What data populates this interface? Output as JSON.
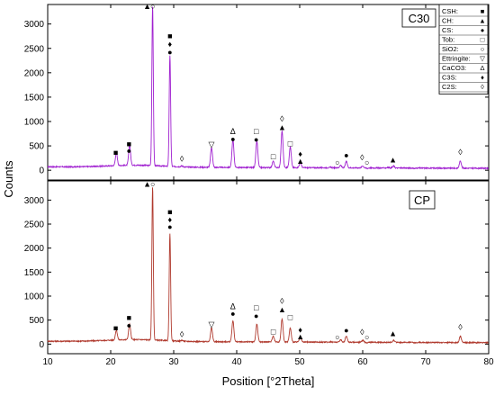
{
  "chart_data": {
    "type": "line",
    "xlabel": "Position [°2Theta]",
    "ylabel": "Counts",
    "xlim": [
      10,
      80
    ],
    "x_ticks": [
      10,
      20,
      30,
      40,
      50,
      60,
      70,
      80
    ],
    "ylim": [
      -200,
      3400
    ],
    "y_ticks": [
      0,
      500,
      1000,
      1500,
      2000,
      2500,
      3000
    ],
    "grid": false,
    "legend_placement": "top-right",
    "legend": [
      {
        "label": "CSH:",
        "symbol": "■"
      },
      {
        "label": "CH:",
        "symbol": "▲"
      },
      {
        "label": "CS:",
        "symbol": "●"
      },
      {
        "label": "Tob:",
        "symbol": "□"
      },
      {
        "label": "SiO2:",
        "symbol": "○"
      },
      {
        "label": "Ettringite:",
        "symbol": "▽"
      },
      {
        "label": "CaCO3:",
        "symbol": "Δ"
      },
      {
        "label": "C3S:",
        "symbol": "♦"
      },
      {
        "label": "C2S:",
        "symbol": "◊"
      }
    ],
    "panels": [
      {
        "label": "C30",
        "color": "#a020d0",
        "baseline": 70,
        "peaks": [
          {
            "x": 20.9,
            "y": 330
          },
          {
            "x": 23.0,
            "y": 480
          },
          {
            "x": 26.65,
            "y": 3350
          },
          {
            "x": 29.4,
            "y": 2350
          },
          {
            "x": 31.3,
            "y": 90
          },
          {
            "x": 36.0,
            "y": 480
          },
          {
            "x": 39.4,
            "y": 640
          },
          {
            "x": 43.2,
            "y": 610
          },
          {
            "x": 45.8,
            "y": 200
          },
          {
            "x": 47.2,
            "y": 820
          },
          {
            "x": 48.5,
            "y": 500
          },
          {
            "x": 50.1,
            "y": 180
          },
          {
            "x": 54.9,
            "y": 80
          },
          {
            "x": 56.5,
            "y": 120
          },
          {
            "x": 57.4,
            "y": 200
          },
          {
            "x": 60.0,
            "y": 110
          },
          {
            "x": 60.7,
            "y": 60
          },
          {
            "x": 64.0,
            "y": 80
          },
          {
            "x": 64.9,
            "y": 110
          },
          {
            "x": 68.2,
            "y": 60
          },
          {
            "x": 75.5,
            "y": 220
          }
        ],
        "annotations": [
          {
            "x": 20.8,
            "y": 360,
            "symbol": "■"
          },
          {
            "x": 22.9,
            "y": 540,
            "symbol": "■"
          },
          {
            "x": 22.9,
            "y": 400,
            "symbol": "●"
          },
          {
            "x": 25.8,
            "y": 3360,
            "symbol": "▲"
          },
          {
            "x": 26.7,
            "y": 3360,
            "symbol": "○"
          },
          {
            "x": 29.4,
            "y": 2750,
            "symbol": "■"
          },
          {
            "x": 29.4,
            "y": 2590,
            "symbol": "♦"
          },
          {
            "x": 29.4,
            "y": 2420,
            "symbol": "●"
          },
          {
            "x": 31.3,
            "y": 230,
            "symbol": "◊"
          },
          {
            "x": 36.0,
            "y": 530,
            "symbol": "▽"
          },
          {
            "x": 39.4,
            "y": 800,
            "symbol": "Δ"
          },
          {
            "x": 39.4,
            "y": 640,
            "symbol": "●"
          },
          {
            "x": 43.1,
            "y": 800,
            "symbol": "□"
          },
          {
            "x": 43.1,
            "y": 630,
            "symbol": "●"
          },
          {
            "x": 45.8,
            "y": 280,
            "symbol": "□"
          },
          {
            "x": 47.2,
            "y": 1060,
            "symbol": "◊"
          },
          {
            "x": 47.2,
            "y": 880,
            "symbol": "▲"
          },
          {
            "x": 48.5,
            "y": 550,
            "symbol": "□"
          },
          {
            "x": 50.1,
            "y": 340,
            "symbol": "♦"
          },
          {
            "x": 50.1,
            "y": 190,
            "symbol": "▲"
          },
          {
            "x": 56.0,
            "y": 160,
            "symbol": "○"
          },
          {
            "x": 57.4,
            "y": 310,
            "symbol": "●"
          },
          {
            "x": 59.9,
            "y": 260,
            "symbol": "◊"
          },
          {
            "x": 60.7,
            "y": 160,
            "symbol": "○"
          },
          {
            "x": 64.8,
            "y": 220,
            "symbol": "▲"
          },
          {
            "x": 75.5,
            "y": 370,
            "symbol": "◊"
          }
        ]
      },
      {
        "label": "CP",
        "color": "#b03a2e",
        "baseline": 60,
        "peaks": [
          {
            "x": 20.9,
            "y": 260
          },
          {
            "x": 23.0,
            "y": 380
          },
          {
            "x": 26.65,
            "y": 3250
          },
          {
            "x": 29.4,
            "y": 2300
          },
          {
            "x": 31.3,
            "y": 80
          },
          {
            "x": 36.0,
            "y": 350
          },
          {
            "x": 39.4,
            "y": 500
          },
          {
            "x": 43.2,
            "y": 430
          },
          {
            "x": 45.8,
            "y": 180
          },
          {
            "x": 47.2,
            "y": 540
          },
          {
            "x": 48.5,
            "y": 350
          },
          {
            "x": 50.1,
            "y": 160
          },
          {
            "x": 54.9,
            "y": 70
          },
          {
            "x": 56.5,
            "y": 110
          },
          {
            "x": 57.4,
            "y": 190
          },
          {
            "x": 60.0,
            "y": 100
          },
          {
            "x": 60.7,
            "y": 50
          },
          {
            "x": 64.0,
            "y": 60
          },
          {
            "x": 64.9,
            "y": 100
          },
          {
            "x": 68.2,
            "y": 50
          },
          {
            "x": 75.5,
            "y": 190
          }
        ],
        "annotations": [
          {
            "x": 20.8,
            "y": 330,
            "symbol": "■"
          },
          {
            "x": 22.9,
            "y": 550,
            "symbol": "■"
          },
          {
            "x": 22.9,
            "y": 390,
            "symbol": "●"
          },
          {
            "x": 25.8,
            "y": 3330,
            "symbol": "▲"
          },
          {
            "x": 26.7,
            "y": 3330,
            "symbol": "○"
          },
          {
            "x": 29.4,
            "y": 2750,
            "symbol": "■"
          },
          {
            "x": 29.4,
            "y": 2590,
            "symbol": "♦"
          },
          {
            "x": 29.4,
            "y": 2440,
            "symbol": "●"
          },
          {
            "x": 31.3,
            "y": 200,
            "symbol": "◊"
          },
          {
            "x": 36.0,
            "y": 410,
            "symbol": "▽"
          },
          {
            "x": 39.4,
            "y": 780,
            "symbol": "Δ"
          },
          {
            "x": 39.4,
            "y": 630,
            "symbol": "●"
          },
          {
            "x": 43.1,
            "y": 760,
            "symbol": "□"
          },
          {
            "x": 43.1,
            "y": 590,
            "symbol": "●"
          },
          {
            "x": 45.8,
            "y": 260,
            "symbol": "□"
          },
          {
            "x": 47.2,
            "y": 900,
            "symbol": "◊"
          },
          {
            "x": 47.2,
            "y": 720,
            "symbol": "▲"
          },
          {
            "x": 48.5,
            "y": 560,
            "symbol": "□"
          },
          {
            "x": 50.1,
            "y": 300,
            "symbol": "♦"
          },
          {
            "x": 50.1,
            "y": 160,
            "symbol": "▲"
          },
          {
            "x": 56.0,
            "y": 150,
            "symbol": "○"
          },
          {
            "x": 57.4,
            "y": 290,
            "symbol": "●"
          },
          {
            "x": 59.9,
            "y": 250,
            "symbol": "◊"
          },
          {
            "x": 60.7,
            "y": 150,
            "symbol": "○"
          },
          {
            "x": 64.8,
            "y": 220,
            "symbol": "▲"
          },
          {
            "x": 75.5,
            "y": 350,
            "symbol": "◊"
          }
        ]
      }
    ]
  }
}
